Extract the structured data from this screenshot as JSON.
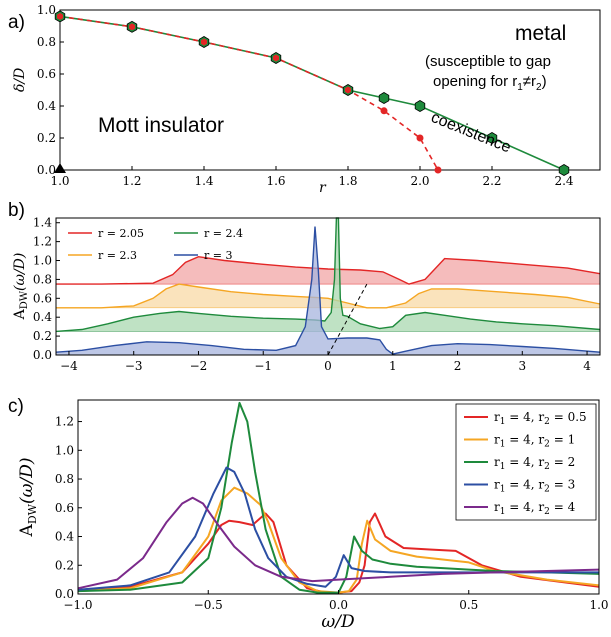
{
  "panel_labels": [
    "a)",
    "b)",
    "c)"
  ],
  "chart_data": [
    {
      "type": "line",
      "panel": "a)",
      "xlabel": "r",
      "ylabel": "δ/D",
      "xlim": [
        1.0,
        2.5
      ],
      "ylim": [
        0.0,
        1.0
      ],
      "xticks": [
        "1.0",
        "1.2",
        "1.4",
        "1.6",
        "1.8",
        "2.0",
        "2.2",
        "2.4"
      ],
      "yticks": [
        "0.0",
        "0.2",
        "0.4",
        "0.6",
        "0.8",
        "1.0"
      ],
      "annotations": {
        "insulator": "Mott insulator",
        "metal": "metal",
        "metal_note_1": "(susceptible to gap",
        "metal_note_2": "opening for r",
        "metal_note_sub1": "1",
        "metal_note_neq": "≠r",
        "metal_note_sub2": "2",
        "metal_note_end": ")",
        "coexistence": "coexistence"
      },
      "series": [
        {
          "color": "#1e8a3c",
          "style": "solid",
          "marker": "hexagon",
          "x": [
            1.0,
            1.2,
            1.4,
            1.6,
            1.8,
            1.9,
            2.0,
            2.2,
            2.4
          ],
          "y": [
            0.96,
            0.895,
            0.8,
            0.7,
            0.5,
            0.45,
            0.4,
            0.2,
            0.0
          ]
        },
        {
          "color": "#e32626",
          "style": "dashed",
          "marker": "hexagon",
          "x": [
            1.0,
            1.2,
            1.4,
            1.6,
            1.8,
            1.9,
            2.0,
            2.05
          ],
          "y": [
            0.96,
            0.895,
            0.8,
            0.7,
            0.5,
            0.37,
            0.2,
            0.0
          ]
        }
      ],
      "special_points": [
        {
          "x": 1.0,
          "y": 0.0,
          "marker": "triangle",
          "color": "#000000"
        }
      ]
    },
    {
      "type": "area",
      "panel": "b)",
      "ylabel_main": "A",
      "ylabel_sub": "DW",
      "ylabel_rest": "(ω/D)",
      "xlim": [
        -4.2,
        4.2
      ],
      "ylim": [
        0.0,
        1.45
      ],
      "xticks": [
        "−4",
        "−3",
        "−2",
        "−1",
        "0",
        "1",
        "2",
        "3",
        "4"
      ],
      "yticks": [
        "0.0",
        "0.2",
        "0.4",
        "0.6",
        "0.8",
        "1.0",
        "1.2",
        "1.4"
      ],
      "series": [
        {
          "name": "r = 2.05",
          "color": "#e32626",
          "fill": "#f2a6a6",
          "offset": 0.75,
          "x": [
            -4.2,
            -3.5,
            -2.7,
            -2.4,
            -2.2,
            -2.0,
            -1.6,
            -1.0,
            -0.5,
            0.0,
            0.5,
            0.85,
            1.1,
            1.25,
            1.5,
            1.8,
            2.3,
            3.0,
            3.7,
            4.2
          ],
          "y": [
            0.75,
            0.75,
            0.76,
            0.85,
            0.98,
            1.04,
            1.0,
            0.96,
            0.93,
            0.91,
            0.9,
            0.88,
            0.8,
            0.75,
            0.8,
            1.02,
            1.0,
            0.96,
            0.92,
            0.86
          ]
        },
        {
          "name": "r = 2.3",
          "color": "#f5a623",
          "fill": "#f8d9a6",
          "offset": 0.5,
          "x": [
            -4.2,
            -3.5,
            -3.0,
            -2.7,
            -2.5,
            -2.3,
            -2.0,
            -1.5,
            -1.0,
            -0.5,
            -0.2,
            0.0,
            0.3,
            0.6,
            0.9,
            1.2,
            1.4,
            1.6,
            2.0,
            2.6,
            3.2,
            3.7,
            4.2
          ],
          "y": [
            0.5,
            0.5,
            0.52,
            0.6,
            0.7,
            0.75,
            0.72,
            0.67,
            0.64,
            0.62,
            0.61,
            0.6,
            0.55,
            0.5,
            0.5,
            0.55,
            0.65,
            0.7,
            0.7,
            0.67,
            0.64,
            0.61,
            0.54
          ]
        },
        {
          "name": "r = 2.4",
          "color": "#1e8a3c",
          "fill": "#a9d8b0",
          "offset": 0.25,
          "x": [
            -4.2,
            -3.8,
            -3.4,
            -3.0,
            -2.6,
            -2.3,
            -2.0,
            -1.5,
            -1.0,
            -0.5,
            -0.2,
            -0.05,
            0.05,
            0.1,
            0.13,
            0.16,
            0.19,
            0.23,
            0.3,
            0.5,
            0.8,
            1.0,
            1.2,
            1.5,
            1.8,
            2.2,
            2.6,
            3.0,
            3.5,
            4.2
          ],
          "y": [
            0.25,
            0.27,
            0.33,
            0.4,
            0.44,
            0.46,
            0.44,
            0.41,
            0.39,
            0.38,
            0.37,
            0.36,
            0.45,
            0.8,
            1.45,
            1.45,
            0.6,
            0.42,
            0.41,
            0.33,
            0.28,
            0.3,
            0.42,
            0.45,
            0.42,
            0.38,
            0.35,
            0.33,
            0.31,
            0.27
          ]
        },
        {
          "name": "r = 3",
          "color": "#2c4fa3",
          "fill": "#a7b4dd",
          "offset": 0.0,
          "x": [
            -4.2,
            -3.8,
            -3.3,
            -2.8,
            -2.3,
            -1.8,
            -1.3,
            -0.8,
            -0.5,
            -0.35,
            -0.25,
            -0.2,
            -0.15,
            -0.1,
            0.0,
            0.3,
            0.6,
            0.8,
            0.9,
            1.0,
            1.2,
            1.6,
            2.0,
            2.5,
            3.0,
            3.5,
            4.2
          ],
          "y": [
            0.03,
            0.05,
            0.1,
            0.14,
            0.13,
            0.1,
            0.06,
            0.05,
            0.1,
            0.3,
            0.8,
            1.36,
            0.9,
            0.3,
            0.17,
            0.18,
            0.18,
            0.16,
            0.06,
            0.01,
            0.04,
            0.1,
            0.12,
            0.11,
            0.09,
            0.07,
            0.03
          ]
        }
      ],
      "dashed_guide": {
        "x": [
          0.0,
          0.6
        ],
        "y": [
          0.0,
          0.75
        ],
        "color": "#000000"
      }
    },
    {
      "type": "line",
      "panel": "c)",
      "ylabel_main": "A",
      "ylabel_sub": "DW",
      "ylabel_rest": "(ω/D)",
      "xlabel": "ω/D",
      "xlim": [
        -1.0,
        1.0
      ],
      "ylim": [
        0.0,
        1.35
      ],
      "xticks": [
        "−1.0",
        "−0.5",
        "0.0",
        "0.5",
        "1.0"
      ],
      "yticks": [
        "0.0",
        "0.2",
        "0.4",
        "0.6",
        "0.8",
        "1.0",
        "1.2"
      ],
      "legend_position": "upper right",
      "series": [
        {
          "name_a": "r",
          "sub_a": "1",
          "eq_a": " = 4, r",
          "sub_b": "2",
          "eq_b": " = 0.5",
          "color": "#e32626",
          "x": [
            -1.0,
            -0.8,
            -0.6,
            -0.5,
            -0.45,
            -0.42,
            -0.38,
            -0.33,
            -0.28,
            -0.25,
            -0.2,
            -0.12,
            -0.05,
            0.0,
            0.05,
            0.08,
            0.1,
            0.12,
            0.14,
            0.18,
            0.25,
            0.35,
            0.45,
            0.55,
            0.7,
            1.0
          ],
          "y": [
            0.02,
            0.05,
            0.15,
            0.35,
            0.48,
            0.51,
            0.5,
            0.48,
            0.56,
            0.5,
            0.2,
            0.04,
            0.01,
            0.01,
            0.02,
            0.08,
            0.2,
            0.5,
            0.56,
            0.4,
            0.32,
            0.31,
            0.3,
            0.2,
            0.12,
            0.05
          ]
        },
        {
          "name_a": "r",
          "sub_a": "1",
          "eq_a": " = 4, r",
          "sub_b": "2",
          "eq_b": " = 1",
          "color": "#f5a623",
          "x": [
            -1.0,
            -0.8,
            -0.6,
            -0.5,
            -0.45,
            -0.4,
            -0.35,
            -0.3,
            -0.27,
            -0.22,
            -0.15,
            -0.08,
            0.0,
            0.04,
            0.07,
            0.09,
            0.11,
            0.14,
            0.2,
            0.3,
            0.4,
            0.5,
            0.6,
            0.8,
            1.0
          ],
          "y": [
            0.02,
            0.04,
            0.15,
            0.4,
            0.65,
            0.74,
            0.7,
            0.62,
            0.5,
            0.25,
            0.08,
            0.02,
            0.01,
            0.02,
            0.1,
            0.35,
            0.51,
            0.38,
            0.3,
            0.26,
            0.24,
            0.22,
            0.16,
            0.1,
            0.06
          ]
        },
        {
          "name_a": "r",
          "sub_a": "1",
          "eq_a": " = 4, r",
          "sub_b": "2",
          "eq_b": " = 2",
          "color": "#1e8a3c",
          "x": [
            -1.0,
            -0.8,
            -0.6,
            -0.5,
            -0.45,
            -0.41,
            -0.38,
            -0.35,
            -0.32,
            -0.28,
            -0.22,
            -0.15,
            -0.08,
            0.0,
            0.03,
            0.06,
            0.09,
            0.13,
            0.2,
            0.3,
            0.4,
            0.5,
            0.6,
            0.8,
            1.0
          ],
          "y": [
            0.02,
            0.03,
            0.08,
            0.25,
            0.6,
            1.05,
            1.33,
            1.2,
            0.85,
            0.45,
            0.12,
            0.03,
            0.01,
            0.01,
            0.12,
            0.4,
            0.3,
            0.24,
            0.21,
            0.19,
            0.18,
            0.17,
            0.16,
            0.15,
            0.14
          ]
        },
        {
          "name_a": "r",
          "sub_a": "1",
          "eq_a": " = 4, r",
          "sub_b": "2",
          "eq_b": " = 3",
          "color": "#2c4fa3",
          "x": [
            -1.0,
            -0.8,
            -0.65,
            -0.55,
            -0.48,
            -0.43,
            -0.4,
            -0.36,
            -0.32,
            -0.27,
            -0.2,
            -0.12,
            -0.05,
            -0.01,
            0.02,
            0.05,
            0.1,
            0.2,
            0.4,
            0.6,
            0.8,
            1.0
          ],
          "y": [
            0.03,
            0.06,
            0.15,
            0.4,
            0.7,
            0.88,
            0.85,
            0.7,
            0.45,
            0.25,
            0.12,
            0.07,
            0.05,
            0.12,
            0.27,
            0.18,
            0.16,
            0.15,
            0.15,
            0.15,
            0.15,
            0.15
          ]
        },
        {
          "name_a": "r",
          "sub_a": "1",
          "eq_a": " = 4, r",
          "sub_b": "2",
          "eq_b": " = 4",
          "color": "#7b2a8b",
          "x": [
            -1.0,
            -0.85,
            -0.75,
            -0.66,
            -0.6,
            -0.56,
            -0.52,
            -0.47,
            -0.4,
            -0.32,
            -0.22,
            -0.1,
            0.0,
            0.2,
            0.4,
            0.6,
            0.8,
            1.0
          ],
          "y": [
            0.04,
            0.1,
            0.25,
            0.5,
            0.63,
            0.67,
            0.63,
            0.5,
            0.33,
            0.2,
            0.12,
            0.09,
            0.1,
            0.12,
            0.14,
            0.15,
            0.16,
            0.17
          ]
        }
      ]
    }
  ]
}
